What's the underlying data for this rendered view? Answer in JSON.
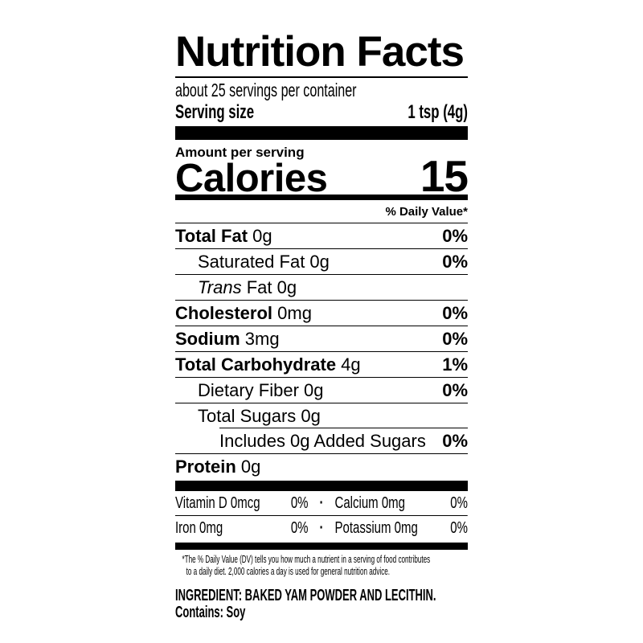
{
  "colors": {
    "ink": "#000000",
    "background": "#ffffff"
  },
  "label": {
    "title": "Nutrition Facts",
    "servings_per_container": "about 25 servings per container",
    "serving_size": {
      "label": "Serving size",
      "value": "1 tsp (4g)"
    },
    "amount_per_serving": "Amount per serving",
    "calories": {
      "label": "Calories",
      "value": "15"
    },
    "daily_value_header": "% Daily Value*",
    "rows": [
      {
        "b": "Total Fat",
        "i": "",
        "t": " 0g",
        "dv": "0%"
      },
      {
        "b": "",
        "i": "",
        "t": "Saturated Fat 0g",
        "dv": "0%"
      },
      {
        "b": "",
        "i": "Trans",
        "t": " Fat 0g",
        "dv": ""
      },
      {
        "b": "Cholesterol",
        "i": "",
        "t": " 0mg",
        "dv": "0%"
      },
      {
        "b": "Sodium",
        "i": "",
        "t": " 3mg",
        "dv": "0%"
      },
      {
        "b": "Total Carbohydrate",
        "i": "",
        "t": " 4g",
        "dv": "1%"
      },
      {
        "b": "",
        "i": "",
        "t": "Dietary Fiber 0g",
        "dv": "0%"
      },
      {
        "b": "",
        "i": "",
        "t": "Total Sugars 0g",
        "dv": ""
      },
      {
        "b": "",
        "i": "",
        "t": "Includes 0g Added Sugars",
        "dv": "0%"
      },
      {
        "b": "Protein",
        "i": "",
        "t": " 0g",
        "dv": ""
      }
    ],
    "micronutrients": {
      "separator": "·",
      "cells": [
        {
          "name": "Vitamin D 0mcg",
          "dv": "0%"
        },
        {
          "name": "Calcium 0mg",
          "dv": "0%"
        },
        {
          "name": "Iron 0mg",
          "dv": "0%"
        },
        {
          "name": "Potassium 0mg",
          "dv": "0%"
        }
      ]
    },
    "footnote_line1": "*The % Daily Value (DV) tells you how much a nutrient in a serving of food contributes",
    "footnote_line2": "to a daily diet. 2,000 calories a day is used for general nutrition advice.",
    "ingredient": "INGREDIENT: BAKED YAM POWDER AND LECITHIN.",
    "contains": "Contains: Soy"
  }
}
